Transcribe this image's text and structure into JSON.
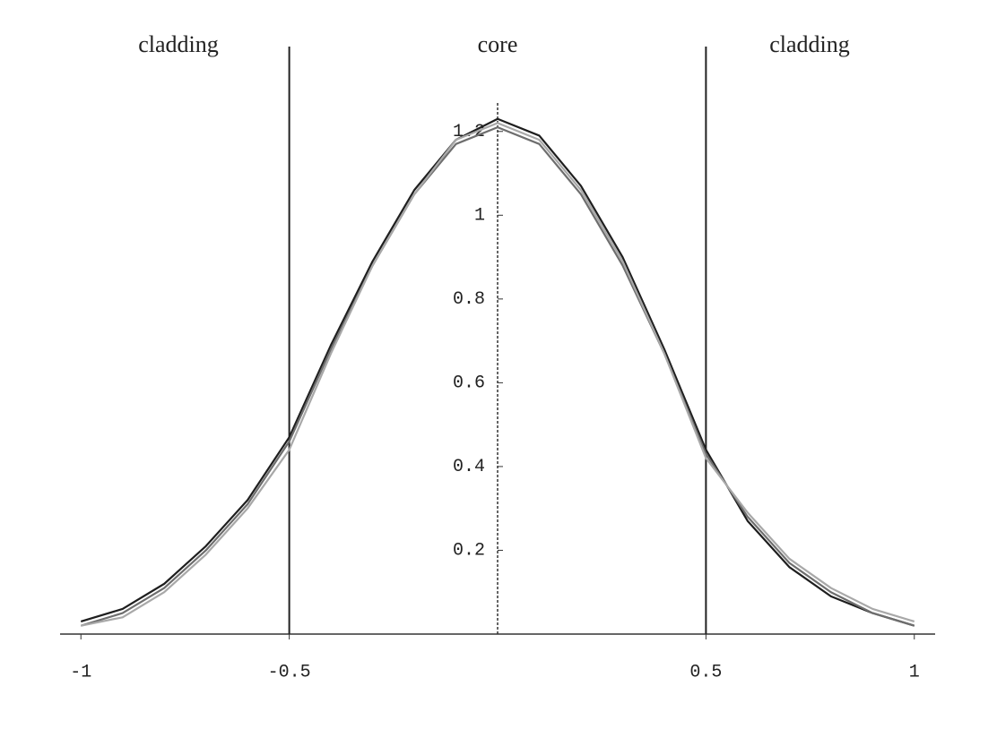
{
  "chart_data": {
    "type": "line",
    "annotations": [
      "cladding",
      "core",
      "cladding"
    ],
    "x": [
      -1,
      -0.9,
      -0.8,
      -0.7,
      -0.6,
      -0.5,
      -0.4,
      -0.3,
      -0.2,
      -0.1,
      0,
      0.1,
      0.2,
      0.3,
      0.4,
      0.5,
      0.6,
      0.7,
      0.8,
      0.9,
      1
    ],
    "series": [
      {
        "color": "#1e1e1e",
        "values": [
          0.03,
          0.06,
          0.12,
          0.21,
          0.32,
          0.47,
          0.69,
          0.89,
          1.06,
          1.18,
          1.23,
          1.19,
          1.07,
          0.9,
          0.68,
          0.44,
          0.27,
          0.16,
          0.09,
          0.05,
          0.02
        ]
      },
      {
        "color": "#6e6e6e",
        "values": [
          0.02,
          0.05,
          0.11,
          0.2,
          0.31,
          0.46,
          0.68,
          0.88,
          1.05,
          1.17,
          1.21,
          1.17,
          1.05,
          0.88,
          0.67,
          0.43,
          0.28,
          0.17,
          0.1,
          0.05,
          0.02
        ]
      },
      {
        "color": "#a8a8a8",
        "values": [
          0.02,
          0.04,
          0.1,
          0.19,
          0.3,
          0.44,
          0.67,
          0.88,
          1.05,
          1.18,
          1.22,
          1.18,
          1.06,
          0.89,
          0.67,
          0.42,
          0.29,
          0.18,
          0.11,
          0.06,
          0.03
        ]
      }
    ],
    "vlines": [
      -0.5,
      0.5
    ],
    "xlim": [
      -1.05,
      1.05
    ],
    "xticks": [
      -1,
      -0.5,
      0.5,
      1
    ],
    "ylim": [
      0,
      1.3
    ],
    "yticks": [
      0.2,
      0.4,
      0.6,
      0.8,
      1,
      1.2
    ]
  }
}
